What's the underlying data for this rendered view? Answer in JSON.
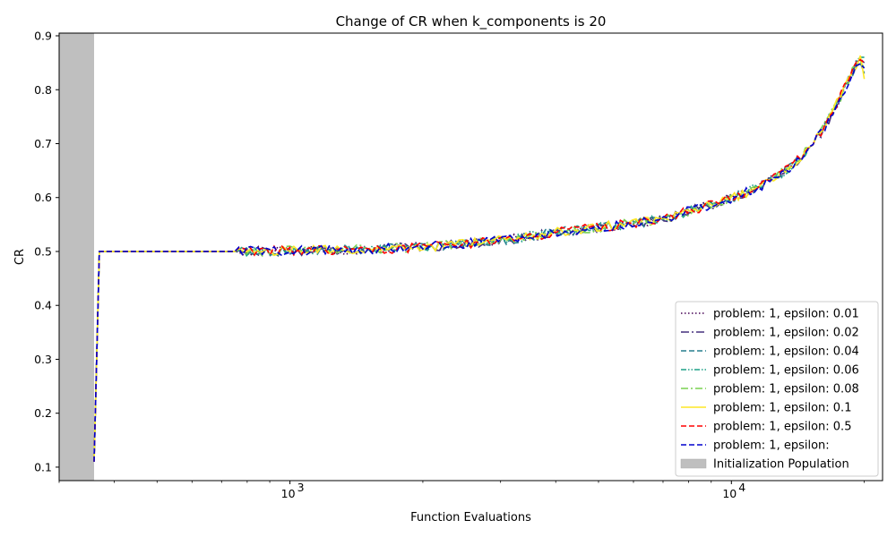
{
  "chart_data": {
    "type": "line",
    "title": "Change of CR when k_components is 20",
    "xlabel": "Function Evaluations",
    "ylabel": "CR",
    "xscale": "log",
    "xlim": [
      300,
      22000
    ],
    "ylim": [
      0.075,
      0.905
    ],
    "yticks": [
      0.1,
      0.2,
      0.3,
      0.4,
      0.5,
      0.6,
      0.7,
      0.8,
      0.9
    ],
    "ytick_labels": [
      "0.1",
      "0.2",
      "0.3",
      "0.4",
      "0.5",
      "0.6",
      "0.7",
      "0.8",
      "0.9"
    ],
    "xticks_major": [
      1000,
      10000
    ],
    "xtick_labels": [
      "10",
      "10"
    ],
    "xtick_exponents": [
      "3",
      "4"
    ],
    "grid": false,
    "legend_position": "lower-right",
    "shaded_region": {
      "label": "Initialization Population",
      "x": [
        300,
        360
      ],
      "color": "#bfbfbf"
    },
    "curve": {
      "start_x": 360,
      "start_y": 0.11,
      "jump_x": 370,
      "flat_end_x": 750,
      "flat_y": 0.5,
      "end_x": 20000,
      "keypoints": [
        [
          750,
          0.5
        ],
        [
          1000,
          0.501
        ],
        [
          1500,
          0.504
        ],
        [
          2000,
          0.508
        ],
        [
          3000,
          0.52
        ],
        [
          4000,
          0.535
        ],
        [
          5000,
          0.545
        ],
        [
          6000,
          0.552
        ],
        [
          7000,
          0.56
        ],
        [
          8000,
          0.575
        ],
        [
          10000,
          0.598
        ],
        [
          12000,
          0.625
        ],
        [
          14000,
          0.665
        ],
        [
          16000,
          0.72
        ],
        [
          18000,
          0.8
        ],
        [
          19500,
          0.86
        ],
        [
          20000,
          0.835
        ]
      ]
    },
    "series": [
      {
        "name": "problem: 1, epsilon: 0.01",
        "color": "#440154",
        "dash": "1.5,2.5",
        "end_y": 0.84
      },
      {
        "name": "problem: 1, epsilon: 0.02",
        "color": "#46327e",
        "dash": "9,3,2,3",
        "end_y": 0.85
      },
      {
        "name": "problem: 1, epsilon: 0.04",
        "color": "#277f8e",
        "dash": "6,3",
        "end_y": 0.83
      },
      {
        "name": "problem: 1, epsilon: 0.06",
        "color": "#1fa187",
        "dash": "6,2,1.5,2,1.5,2",
        "end_y": 0.86
      },
      {
        "name": "problem: 1, epsilon: 0.08",
        "color": "#7ad151",
        "dash": "8,3,2,3",
        "end_y": 0.84
      },
      {
        "name": "problem: 1, epsilon: 0.1",
        "color": "#fde725",
        "dash": "",
        "end_y": 0.82
      },
      {
        "name": "problem: 1, epsilon: 0.5",
        "color": "#ff0000",
        "dash": "6,3",
        "end_y": 0.85
      },
      {
        "name": "problem: 1, epsilon:",
        "color": "#0000cd",
        "dash": "6,3",
        "end_y": 0.84
      }
    ]
  }
}
